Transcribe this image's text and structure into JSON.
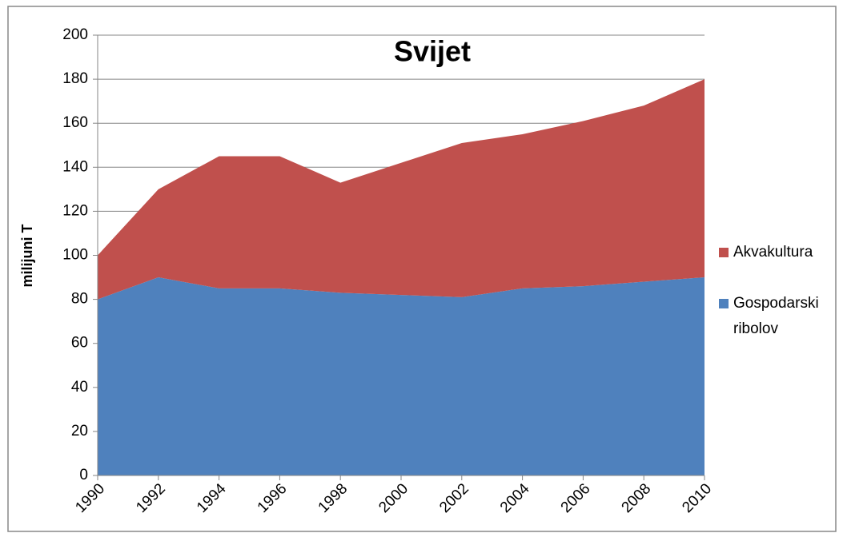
{
  "chart_data": {
    "type": "stacked_area",
    "title": "Svijet",
    "y_label": "milijuni T",
    "x": [
      1990,
      1992,
      1994,
      1996,
      1998,
      2000,
      2002,
      2004,
      2006,
      2008,
      2010
    ],
    "series": [
      {
        "name": "Gospodarski ribolov",
        "color": "#4f81bd",
        "values": [
          80,
          90,
          85,
          85,
          83,
          82,
          81,
          85,
          86,
          88,
          90
        ]
      },
      {
        "name": "Akvakultura",
        "color": "#c0504d",
        "values": [
          20,
          40,
          60,
          60,
          50,
          60,
          70,
          70,
          75,
          80,
          90
        ]
      }
    ],
    "xlim": [
      1990,
      2010
    ],
    "xticks": [
      1990,
      1992,
      1994,
      1996,
      1998,
      2000,
      2002,
      2004,
      2006,
      2008,
      2010
    ],
    "ylim": [
      0,
      200
    ],
    "yticks": [
      0,
      20,
      40,
      60,
      80,
      100,
      120,
      140,
      160,
      180,
      200
    ],
    "grid": true,
    "legend": "right"
  }
}
